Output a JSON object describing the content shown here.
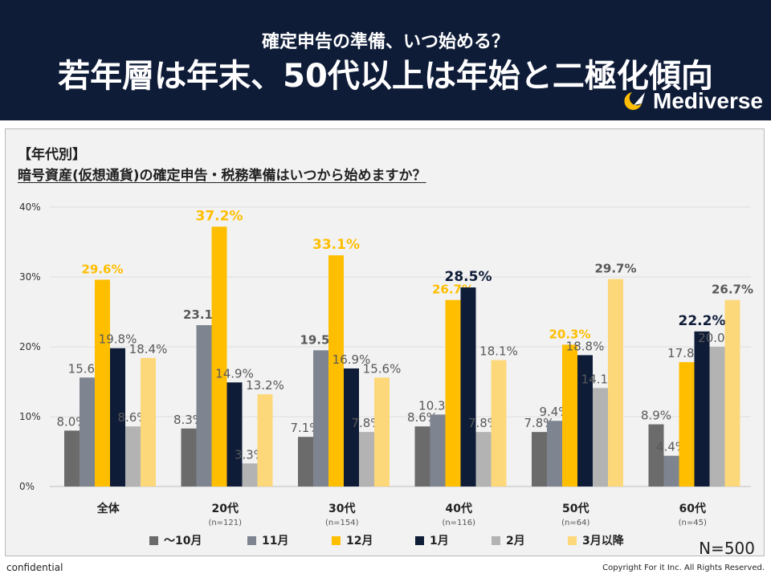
{
  "header": {
    "subtitle": "確定申告の準備、いつ始める？",
    "title": "若年層は年末、50代以上は年始と二極化傾向",
    "brand": "Mediverse"
  },
  "panel": {
    "category_tag": "【年代別】",
    "question": "暗号資産(仮想通貨)の確定申告・税務準備はいつから始めますか？"
  },
  "chart_data": {
    "type": "bar",
    "ylim": [
      0,
      40
    ],
    "yticks": [
      0,
      10,
      20,
      30,
      40
    ],
    "ytick_labels": [
      "0%",
      "10%",
      "20%",
      "30%",
      "40%"
    ],
    "categories": [
      "全体",
      "20代",
      "30代",
      "40代",
      "50代",
      "60代"
    ],
    "category_n": [
      "",
      "(n=121)",
      "(n=154)",
      "(n=116)",
      "(n=64)",
      "(n=45)"
    ],
    "series": [
      {
        "name": "～10月",
        "color": "#6b6b6b",
        "label_color": "#595959",
        "values": [
          8.0,
          8.3,
          7.1,
          8.6,
          7.8,
          8.9
        ]
      },
      {
        "name": "11月",
        "color": "#7f8590",
        "label_color": "#595959",
        "values": [
          15.6,
          23.1,
          19.5,
          10.3,
          9.4,
          4.4
        ]
      },
      {
        "name": "12月",
        "color": "#ffbe00",
        "label_color": "#ffbe00",
        "values": [
          29.6,
          37.2,
          33.1,
          26.7,
          20.3,
          17.8
        ]
      },
      {
        "name": "1月",
        "color": "#0f1c38",
        "label_color": "#0f1c38",
        "values": [
          19.8,
          14.9,
          16.9,
          28.5,
          18.8,
          22.2
        ]
      },
      {
        "name": "2月",
        "color": "#b3b3b3",
        "label_color": "#595959",
        "values": [
          8.6,
          3.3,
          7.8,
          7.8,
          14.1,
          20.0
        ]
      },
      {
        "name": "3月以降",
        "color": "#fdd87a",
        "label_color": "#595959",
        "values": [
          18.4,
          13.2,
          15.6,
          18.1,
          29.7,
          26.7
        ]
      }
    ],
    "highlight_max": [
      [
        2
      ],
      [
        1,
        2
      ],
      [
        1,
        2
      ],
      [
        2,
        3
      ],
      [
        2,
        5
      ],
      [
        3,
        5
      ]
    ],
    "total_n": "N=500"
  },
  "footer": {
    "confidential": "confidential",
    "copyright": "Copyright For it Inc. All Rights Reserved."
  }
}
